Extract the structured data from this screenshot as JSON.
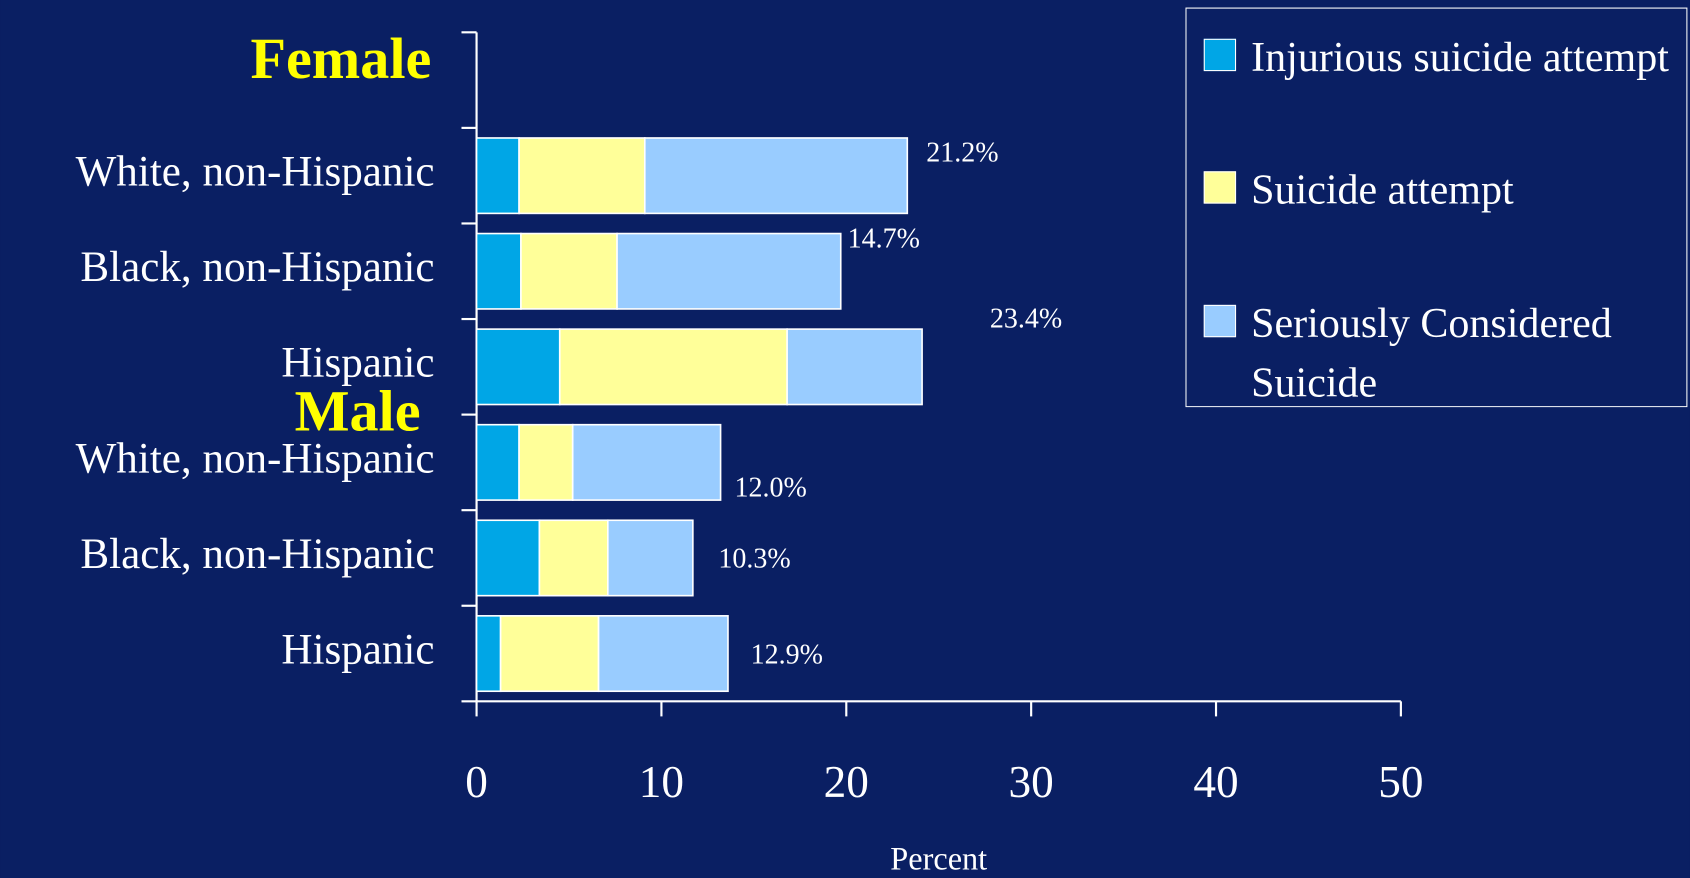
{
  "chart_data": {
    "type": "stacked_barh",
    "group_labels": [
      "Female",
      "Male"
    ],
    "categories": [
      "White, non-Hispanic",
      "Black, non-Hispanic",
      "Hispanic",
      "White, non-Hispanic",
      "Black, non-Hispanic",
      "Hispanic"
    ],
    "series": [
      {
        "name": "Injurious suicide attempt",
        "color": "#00a6e6",
        "values": [
          2.3,
          2.4,
          4.5,
          2.3,
          3.4,
          1.3
        ]
      },
      {
        "name": "Suicide attempt",
        "color": "#ffff99",
        "values": [
          6.8,
          5.2,
          12.3,
          2.9,
          3.7,
          5.3
        ]
      },
      {
        "name": "Seriously Considered Suicide",
        "color": "#99ccff",
        "values": [
          14.2,
          12.1,
          7.3,
          8.0,
          4.6,
          7.0
        ]
      }
    ],
    "annotations": [
      "21.2%",
      "14.7%",
      "23.4%",
      "12.0%",
      "10.3%",
      "12.9%"
    ],
    "xlim": [
      0,
      50
    ],
    "xticks": [
      0,
      10,
      20,
      30,
      40,
      50
    ],
    "xlabel": "Percent",
    "legend": "upper right"
  }
}
